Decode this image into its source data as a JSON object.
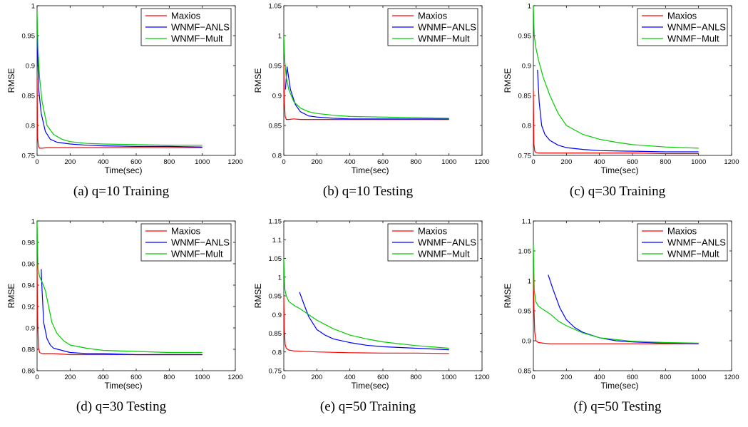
{
  "chart_data": [
    {
      "type": "line",
      "caption": "(a) q=10 Training",
      "xlabel": "Time(sec)",
      "ylabel": "RMSE",
      "xlim": [
        0,
        1200
      ],
      "ylim": [
        0.75,
        1
      ],
      "xticks": [
        "0",
        "200",
        "400",
        "600",
        "800",
        "1000",
        "1200"
      ],
      "yticks": [
        "0.75",
        "0.8",
        "0.85",
        "0.9",
        "0.95",
        "1"
      ],
      "legend": "top-right",
      "series": [
        {
          "name": "Maxios",
          "color": "#ff0000",
          "x": [
            0,
            3,
            8,
            15,
            30,
            60,
            100,
            200,
            400,
            600,
            800,
            1000
          ],
          "y": [
            0.88,
            0.78,
            0.765,
            0.762,
            0.762,
            0.763,
            0.763,
            0.763,
            0.763,
            0.763,
            0.763,
            0.763
          ]
        },
        {
          "name": "WNMF−ANLS",
          "color": "#0000ff",
          "x": [
            0,
            10,
            25,
            50,
            80,
            120,
            200,
            300,
            400,
            600,
            800,
            1000
          ],
          "y": [
            0.95,
            0.86,
            0.82,
            0.79,
            0.777,
            0.772,
            0.769,
            0.767,
            0.766,
            0.765,
            0.765,
            0.764
          ]
        },
        {
          "name": "WNMF−Mult",
          "color": "#00cc00",
          "x": [
            0,
            5,
            15,
            30,
            60,
            100,
            150,
            200,
            300,
            400,
            600,
            800,
            1000
          ],
          "y": [
            0.99,
            0.93,
            0.88,
            0.84,
            0.8,
            0.785,
            0.777,
            0.773,
            0.77,
            0.769,
            0.768,
            0.767,
            0.767
          ]
        }
      ]
    },
    {
      "type": "line",
      "caption": "(b) q=10 Testing",
      "xlabel": "Time(sec)",
      "ylabel": "RMSE",
      "xlim": [
        0,
        1200
      ],
      "ylim": [
        0.8,
        1.05
      ],
      "xticks": [
        "0",
        "200",
        "400",
        "600",
        "800",
        "1000",
        "1200"
      ],
      "yticks": [
        "0.8",
        "0.85",
        "0.9",
        "0.95",
        "1",
        "1.05"
      ],
      "legend": "top-right",
      "series": [
        {
          "name": "Maxios",
          "color": "#ff0000",
          "x": [
            0,
            3,
            8,
            15,
            30,
            60,
            100,
            200,
            400,
            600,
            800,
            1000
          ],
          "y": [
            0.95,
            0.89,
            0.865,
            0.86,
            0.86,
            0.861,
            0.86,
            0.86,
            0.86,
            0.86,
            0.86,
            0.86
          ]
        },
        {
          "name": "WNMF−ANLS",
          "color": "#0000ff",
          "x": [
            10,
            20,
            40,
            70,
            100,
            150,
            200,
            300,
            400,
            600,
            800,
            1000
          ],
          "y": [
            0.91,
            0.948,
            0.91,
            0.885,
            0.873,
            0.866,
            0.864,
            0.862,
            0.861,
            0.861,
            0.861,
            0.861
          ]
        },
        {
          "name": "WNMF−Mult",
          "color": "#00cc00",
          "x": [
            0,
            5,
            15,
            30,
            60,
            100,
            150,
            200,
            300,
            400,
            600,
            800,
            1000
          ],
          "y": [
            1.0,
            0.96,
            0.93,
            0.91,
            0.89,
            0.879,
            0.873,
            0.87,
            0.867,
            0.865,
            0.864,
            0.863,
            0.862
          ]
        }
      ]
    },
    {
      "type": "line",
      "caption": "(c) q=30 Training",
      "xlabel": "Time(sec)",
      "ylabel": "RMSE",
      "xlim": [
        0,
        1200
      ],
      "ylim": [
        0.75,
        1
      ],
      "xticks": [
        "0",
        "200",
        "400",
        "600",
        "800",
        "1000",
        "1200"
      ],
      "yticks": [
        "0.75",
        "0.8",
        "0.85",
        "0.9",
        "0.95",
        "1"
      ],
      "legend": "top-right",
      "series": [
        {
          "name": "Maxios",
          "color": "#ff0000",
          "x": [
            0,
            3,
            8,
            15,
            30,
            60,
            100,
            200,
            400,
            600,
            800,
            1000
          ],
          "y": [
            0.86,
            0.77,
            0.757,
            0.755,
            0.754,
            0.754,
            0.754,
            0.754,
            0.754,
            0.754,
            0.753,
            0.753
          ]
        },
        {
          "name": "WNMF−ANLS",
          "color": "#0000ff",
          "x": [
            25,
            35,
            50,
            70,
            100,
            150,
            200,
            300,
            400,
            600,
            800,
            1000
          ],
          "y": [
            0.893,
            0.84,
            0.8,
            0.785,
            0.775,
            0.767,
            0.763,
            0.76,
            0.758,
            0.757,
            0.756,
            0.756
          ]
        },
        {
          "name": "WNMF−Mult",
          "color": "#00cc00",
          "x": [
            0,
            5,
            15,
            30,
            60,
            100,
            150,
            200,
            300,
            400,
            500,
            600,
            800,
            1000
          ],
          "y": [
            1.0,
            0.95,
            0.93,
            0.91,
            0.88,
            0.85,
            0.82,
            0.8,
            0.785,
            0.777,
            0.772,
            0.768,
            0.764,
            0.762
          ]
        }
      ]
    },
    {
      "type": "line",
      "caption": "(d) q=30 Testing",
      "xlabel": "Time(sec)",
      "ylabel": "RMSE",
      "xlim": [
        0,
        1200
      ],
      "ylim": [
        0.86,
        1
      ],
      "xticks": [
        "0",
        "200",
        "400",
        "600",
        "800",
        "1000",
        "1200"
      ],
      "yticks": [
        "0.86",
        "0.88",
        "0.9",
        "0.92",
        "0.94",
        "0.96",
        "0.98",
        "1"
      ],
      "legend": "top-right",
      "series": [
        {
          "name": "Maxios",
          "color": "#ff0000",
          "x": [
            0,
            3,
            8,
            15,
            30,
            60,
            100,
            200,
            300,
            400,
            600,
            800,
            1000
          ],
          "y": [
            0.96,
            0.91,
            0.882,
            0.877,
            0.876,
            0.876,
            0.876,
            0.875,
            0.875,
            0.875,
            0.875,
            0.875,
            0.875
          ]
        },
        {
          "name": "WNMF−ANLS",
          "color": "#0000ff",
          "x": [
            25,
            30,
            40,
            60,
            80,
            100,
            150,
            200,
            300,
            400,
            600,
            800,
            1000
          ],
          "y": [
            0.955,
            0.935,
            0.905,
            0.89,
            0.884,
            0.881,
            0.879,
            0.877,
            0.876,
            0.876,
            0.875,
            0.875,
            0.875
          ]
        },
        {
          "name": "WNMF−Mult",
          "color": "#00cc00",
          "x": [
            0,
            5,
            15,
            30,
            50,
            70,
            90,
            120,
            160,
            200,
            300,
            400,
            600,
            800,
            1000
          ],
          "y": [
            1.0,
            0.955,
            0.948,
            0.943,
            0.935,
            0.92,
            0.905,
            0.895,
            0.888,
            0.884,
            0.881,
            0.879,
            0.878,
            0.877,
            0.877
          ]
        }
      ]
    },
    {
      "type": "line",
      "caption": "(e) q=50 Training",
      "xlabel": "Time(sec)",
      "ylabel": "RMSE",
      "xlim": [
        0,
        1200
      ],
      "ylim": [
        0.75,
        1.15
      ],
      "xticks": [
        "0",
        "200",
        "400",
        "600",
        "800",
        "1000",
        "1200"
      ],
      "yticks": [
        "0.75",
        "0.8",
        "0.85",
        "0.9",
        "0.95",
        "1",
        "1.05",
        "1.1",
        "1.15"
      ],
      "legend": "top-right",
      "series": [
        {
          "name": "Maxios",
          "color": "#ff0000",
          "x": [
            0,
            3,
            8,
            15,
            30,
            60,
            100,
            200,
            400,
            600,
            800,
            1000
          ],
          "y": [
            0.95,
            0.86,
            0.82,
            0.81,
            0.805,
            0.803,
            0.802,
            0.8,
            0.798,
            0.797,
            0.797,
            0.796
          ]
        },
        {
          "name": "WNMF−ANLS",
          "color": "#0000ff",
          "x": [
            95,
            120,
            150,
            200,
            250,
            300,
            400,
            500,
            600,
            800,
            1000
          ],
          "y": [
            0.96,
            0.93,
            0.895,
            0.86,
            0.845,
            0.835,
            0.825,
            0.818,
            0.814,
            0.81,
            0.806
          ]
        },
        {
          "name": "WNMF−Mult",
          "color": "#00cc00",
          "x": [
            0,
            5,
            15,
            30,
            60,
            100,
            150,
            200,
            300,
            400,
            500,
            600,
            800,
            1000
          ],
          "y": [
            1.05,
            0.97,
            0.95,
            0.935,
            0.925,
            0.915,
            0.9,
            0.885,
            0.862,
            0.845,
            0.835,
            0.827,
            0.817,
            0.81
          ]
        }
      ]
    },
    {
      "type": "line",
      "caption": "(f) q=50 Testing",
      "xlabel": "Time(sec)",
      "ylabel": "RMSE",
      "xlim": [
        0,
        1200
      ],
      "ylim": [
        0.85,
        1.1
      ],
      "xticks": [
        "0",
        "200",
        "400",
        "600",
        "800",
        "1000",
        "1200"
      ],
      "yticks": [
        "0.85",
        "0.9",
        "0.95",
        "1",
        "1.05",
        "1.1"
      ],
      "legend": "top-right",
      "series": [
        {
          "name": "Maxios",
          "color": "#ff0000",
          "x": [
            0,
            3,
            8,
            15,
            30,
            60,
            100,
            200,
            400,
            600,
            800,
            1000
          ],
          "y": [
            1.03,
            0.96,
            0.915,
            0.9,
            0.897,
            0.896,
            0.895,
            0.895,
            0.895,
            0.895,
            0.895,
            0.895
          ]
        },
        {
          "name": "WNMF−ANLS",
          "color": "#0000ff",
          "x": [
            90,
            120,
            160,
            200,
            250,
            300,
            400,
            500,
            600,
            800,
            1000
          ],
          "y": [
            1.01,
            0.985,
            0.955,
            0.935,
            0.922,
            0.914,
            0.905,
            0.9,
            0.898,
            0.896,
            0.895
          ]
        },
        {
          "name": "WNMF−Mult",
          "color": "#00cc00",
          "x": [
            0,
            5,
            15,
            30,
            60,
            100,
            150,
            200,
            300,
            400,
            600,
            800,
            1000
          ],
          "y": [
            1.06,
            0.985,
            0.965,
            0.958,
            0.952,
            0.945,
            0.933,
            0.925,
            0.913,
            0.905,
            0.899,
            0.897,
            0.896
          ]
        }
      ]
    }
  ]
}
